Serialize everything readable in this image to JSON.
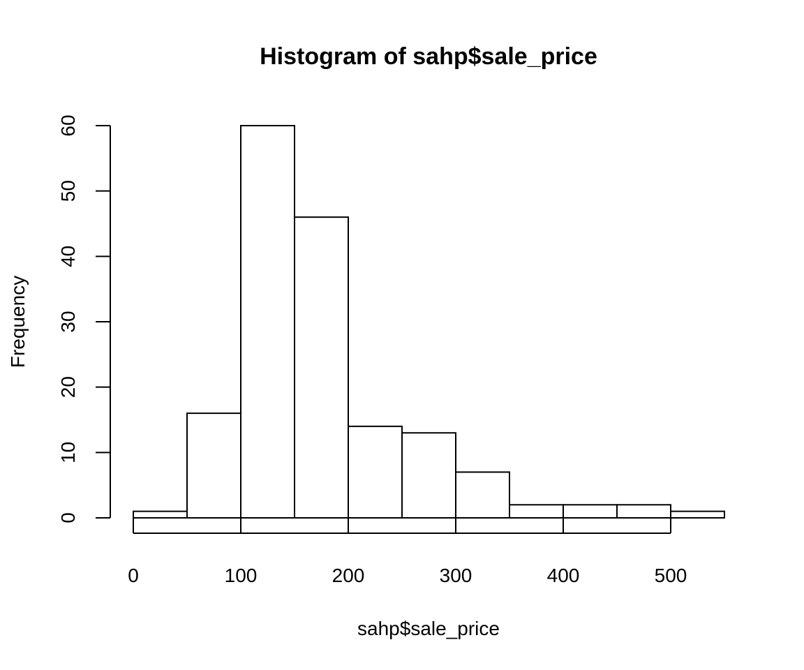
{
  "chart_data": {
    "type": "bar",
    "subtype": "histogram",
    "title": "Histogram of sahp$sale_price",
    "xlabel": "sahp$sale_price",
    "ylabel": "Frequency",
    "bin_width": 50,
    "bins": [
      {
        "from": 0,
        "to": 50,
        "count": 1
      },
      {
        "from": 50,
        "to": 100,
        "count": 16
      },
      {
        "from": 100,
        "to": 150,
        "count": 60
      },
      {
        "from": 150,
        "to": 200,
        "count": 46
      },
      {
        "from": 200,
        "to": 250,
        "count": 14
      },
      {
        "from": 250,
        "to": 300,
        "count": 13
      },
      {
        "from": 300,
        "to": 350,
        "count": 7
      },
      {
        "from": 350,
        "to": 400,
        "count": 2
      },
      {
        "from": 400,
        "to": 450,
        "count": 2
      },
      {
        "from": 450,
        "to": 500,
        "count": 2
      },
      {
        "from": 500,
        "to": 550,
        "count": 1
      }
    ],
    "xlim": [
      0,
      550
    ],
    "ylim": [
      0,
      60
    ],
    "x_ticks": [
      0,
      100,
      200,
      300,
      400,
      500
    ],
    "y_ticks": [
      0,
      10,
      20,
      30,
      40,
      50,
      60
    ],
    "grid": false,
    "bar_fill": "#ffffff",
    "bar_stroke": "#000000"
  }
}
